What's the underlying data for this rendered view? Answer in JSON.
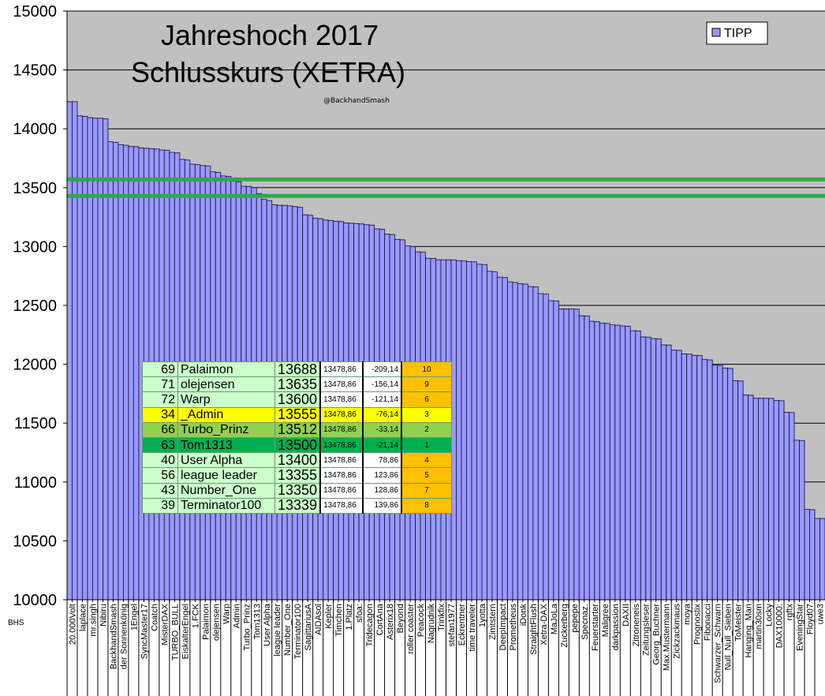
{
  "chart_data": {
    "type": "bar",
    "title": "Jahreshoch 2017",
    "subtitle": "Schlusskurs (XETRA)",
    "credit": "@BackhandSmash",
    "corner_label": "BHS",
    "legend": {
      "entries": [
        "TIPP"
      ],
      "placement": "top-right"
    },
    "ylim": [
      10000,
      15000
    ],
    "yticks": [
      10000,
      10500,
      11000,
      11500,
      12000,
      12500,
      13000,
      13500,
      14000,
      14500,
      15000
    ],
    "grid": true,
    "colors": {
      "plot_bg": "#c0c0c0",
      "bar": "#9999ff",
      "reference_line": "#2ea84a"
    },
    "reference_lines": [
      13570,
      13430
    ],
    "categories": [
      "20.000Volt",
      "",
      "laplace",
      "",
      "mr.singh",
      "",
      "Nibiru",
      "",
      "BackhandSmash",
      "",
      "der Sonnenkönig",
      "",
      "1Engel",
      "",
      "SyncMaster17",
      "",
      "Coatch",
      "",
      "MisterDAX",
      "",
      "TURBO_BULL",
      "",
      "EiskalterEngel",
      "",
      "1.FCK",
      "",
      "Palaimon",
      "",
      "olejensen",
      "",
      "Warp",
      "",
      "Admin",
      "",
      "Turbo_Prinz",
      "",
      "Tom1313",
      "",
      "User Alpha",
      "",
      "league leader",
      "",
      "Number_One",
      "",
      "Terminator100",
      "",
      "SagittariusA",
      "",
      "AIDAsol",
      "",
      "Kepler",
      "",
      "Timchen",
      "",
      "1.Platz",
      "",
      "sfoa:",
      "",
      "Tridecagon",
      "",
      "CortAna",
      "",
      "Asterix18",
      "",
      "Beyond",
      "",
      "roller coaster",
      "",
      "Peacock",
      "",
      "Nagrudnik",
      "",
      "Trinkfix",
      "",
      "stefan1977",
      "",
      "Eckrentner",
      "",
      "time traveler",
      "",
      "1yotta",
      "",
      "Zimtstern",
      "",
      "DeepImpact",
      "",
      "Prometheus",
      "",
      "iDonk",
      "",
      "StraightFlush",
      "",
      "Xetra-DAX",
      "",
      "MaJoLa",
      "",
      "Zuckerberg",
      "",
      "pepepe",
      "",
      "Specnaz.",
      "",
      "Feuerstarter",
      "",
      "Maligree",
      "",
      "darkpassion",
      "",
      "DAXII",
      "",
      "Zitroneneis",
      "",
      "Zeitungsleser",
      "",
      "Georg_Buchner",
      "",
      "Max.Mustermann",
      "",
      "Zickzackmaus",
      "",
      "moya",
      "",
      "Prognostix",
      "",
      "Fibonacci",
      "",
      "Schwarzer_Schwarn",
      "",
      "Null_Null_Sieben",
      "",
      "ToMeister",
      "",
      "Hanging_Man",
      "",
      "martin30sm",
      "",
      "Locky",
      "",
      "DAX10000:",
      "",
      "rgftx",
      "",
      "EveningStar",
      "",
      "Floyd07",
      "",
      "uwe3",
      ""
    ],
    "series": [
      {
        "name": "TIPP",
        "values": [
          14230,
          14230,
          14110,
          14105,
          14095,
          14090,
          14090,
          14085,
          13890,
          13885,
          13865,
          13860,
          13850,
          13848,
          13838,
          13835,
          13830,
          13828,
          13820,
          13818,
          13800,
          13795,
          13740,
          13735,
          13700,
          13695,
          13688,
          13685,
          13635,
          13630,
          13600,
          13595,
          13555,
          13550,
          13512,
          13510,
          13500,
          13450,
          13400,
          13390,
          13355,
          13350,
          13350,
          13345,
          13339,
          13333,
          13270,
          13265,
          13240,
          13237,
          13225,
          13222,
          13215,
          13212,
          13200,
          13198,
          13195,
          13192,
          13185,
          13182,
          13150,
          13146,
          13105,
          13102,
          13060,
          13057,
          13005,
          13000,
          12955,
          12952,
          12900,
          12898,
          12888,
          12887,
          12887,
          12886,
          12880,
          12878,
          12872,
          12870,
          12850,
          12847,
          12790,
          12786,
          12740,
          12737,
          12700,
          12695,
          12685,
          12681,
          12660,
          12658,
          12600,
          12596,
          12540,
          12538,
          12470,
          12470,
          12470,
          12468,
          12412,
          12410,
          12365,
          12362,
          12350,
          12347,
          12335,
          12332,
          12325,
          12323,
          12285,
          12283,
          12232,
          12230,
          12218,
          12216,
          12165,
          12163,
          12120,
          12118,
          12088,
          12086,
          12076,
          12075,
          12040,
          12037,
          11992,
          11990,
          11968,
          11965,
          11860,
          11858,
          11740,
          11737,
          11712,
          11711,
          11711,
          11710,
          11692,
          11690,
          11592,
          11590,
          11355,
          11352,
          10768,
          10765,
          10690,
          10690
        ]
      }
    ]
  },
  "table": {
    "rows": [
      {
        "pos": "69",
        "name": "Palaimon",
        "tipp": "13688",
        "actual": "13478,86",
        "diff": "-209,14",
        "rank": "10",
        "style": "normal"
      },
      {
        "pos": "71",
        "name": "olejensen",
        "tipp": "13635",
        "actual": "13478,86",
        "diff": "-156,14",
        "rank": "9",
        "style": "normal"
      },
      {
        "pos": "72",
        "name": "Warp",
        "tipp": "13600",
        "actual": "13478,86",
        "diff": "-121,14",
        "rank": "6",
        "style": "normal"
      },
      {
        "pos": "34",
        "name": "_Admin",
        "tipp": "13555",
        "actual": "13478,86",
        "diff": "-76,14",
        "rank": "3",
        "style": "third"
      },
      {
        "pos": "66",
        "name": "Turbo_Prinz",
        "tipp": "13512",
        "actual": "13478,86",
        "diff": "-33,14",
        "rank": "2",
        "style": "second"
      },
      {
        "pos": "63",
        "name": "Tom1313",
        "tipp": "13500",
        "actual": "13478,86",
        "diff": "-21,14",
        "rank": "1",
        "style": "first"
      },
      {
        "pos": "40",
        "name": "User Alpha",
        "tipp": "13400",
        "actual": "13478,86",
        "diff": "78,86",
        "rank": "4",
        "style": "normal"
      },
      {
        "pos": "56",
        "name": "league leader",
        "tipp": "13355",
        "actual": "13478,86",
        "diff": "123,86",
        "rank": "5",
        "style": "normal"
      },
      {
        "pos": "43",
        "name": "Number_One",
        "tipp": "13350",
        "actual": "13478,86",
        "diff": "128,86",
        "rank": "7",
        "style": "normal"
      },
      {
        "pos": "39",
        "name": "Terminator100",
        "tipp": "13339",
        "actual": "13478,86",
        "diff": "139,86",
        "rank": "8",
        "style": "normal"
      }
    ],
    "row_colors": {
      "normal": "#ccffcc",
      "third": "#ffff00",
      "second": "#92d050",
      "first": "#00b050"
    }
  }
}
